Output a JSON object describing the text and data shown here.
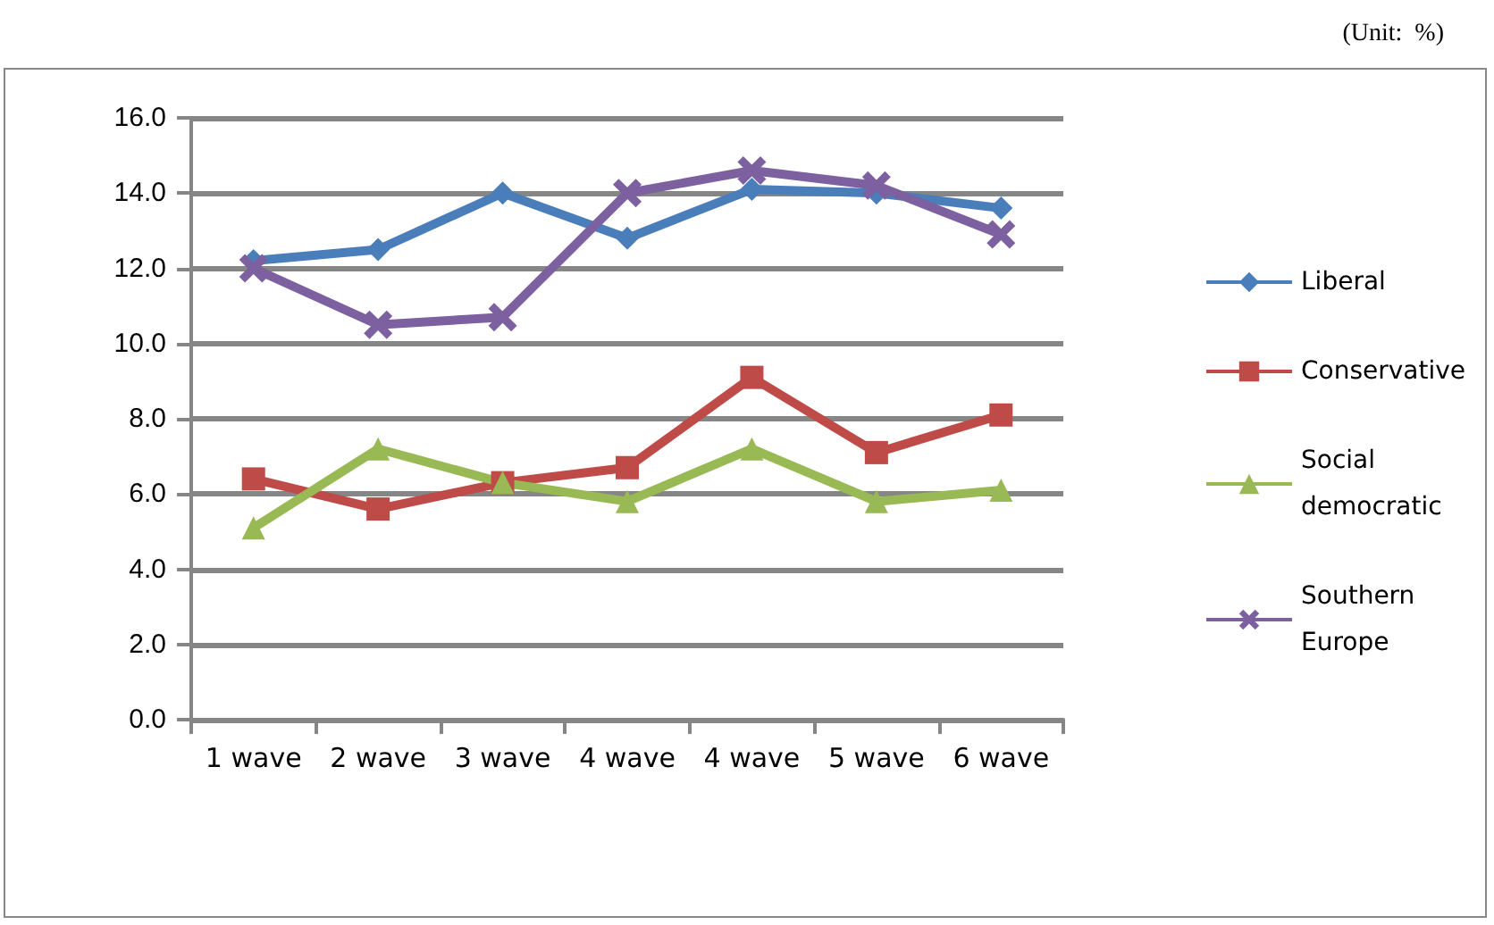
{
  "chart_data": {
    "type": "line",
    "annotations": [
      "(Unit:  %)"
    ],
    "categories": [
      "1 wave",
      "2 wave",
      "3 wave",
      "4 wave",
      "4 wave",
      "5 wave",
      "6 wave"
    ],
    "series": [
      {
        "name": "Liberal",
        "color": "#4a7ebb",
        "marker": "diamond",
        "values": [
          12.2,
          12.5,
          14.0,
          12.8,
          14.1,
          14.0,
          13.6
        ]
      },
      {
        "name": "Conservative",
        "color": "#be4b48",
        "marker": "square",
        "values": [
          6.4,
          5.6,
          6.3,
          6.7,
          9.1,
          7.1,
          8.1
        ]
      },
      {
        "name": "Social democratic",
        "color": "#98b954",
        "marker": "triangle",
        "values": [
          5.1,
          7.2,
          6.3,
          5.8,
          7.2,
          5.8,
          6.1
        ]
      },
      {
        "name": "Southern Europe",
        "color": "#7d60a0",
        "marker": "cross",
        "values": [
          12.0,
          10.5,
          10.7,
          14.0,
          14.6,
          14.2,
          12.9
        ]
      }
    ],
    "ylim": [
      0,
      16
    ],
    "yticks": [
      {
        "value": 0,
        "label": "0.0"
      },
      {
        "value": 2,
        "label": "2.0"
      },
      {
        "value": 4,
        "label": "4.0"
      },
      {
        "value": 6,
        "label": "6.0"
      },
      {
        "value": 8,
        "label": "8.0"
      },
      {
        "value": 10,
        "label": "10.0"
      },
      {
        "value": 12,
        "label": "12.0"
      },
      {
        "value": 14,
        "label": "14.0"
      },
      {
        "value": 16,
        "label": "16.0"
      }
    ],
    "grid": "y",
    "legend": "right",
    "line_style": "solid"
  }
}
